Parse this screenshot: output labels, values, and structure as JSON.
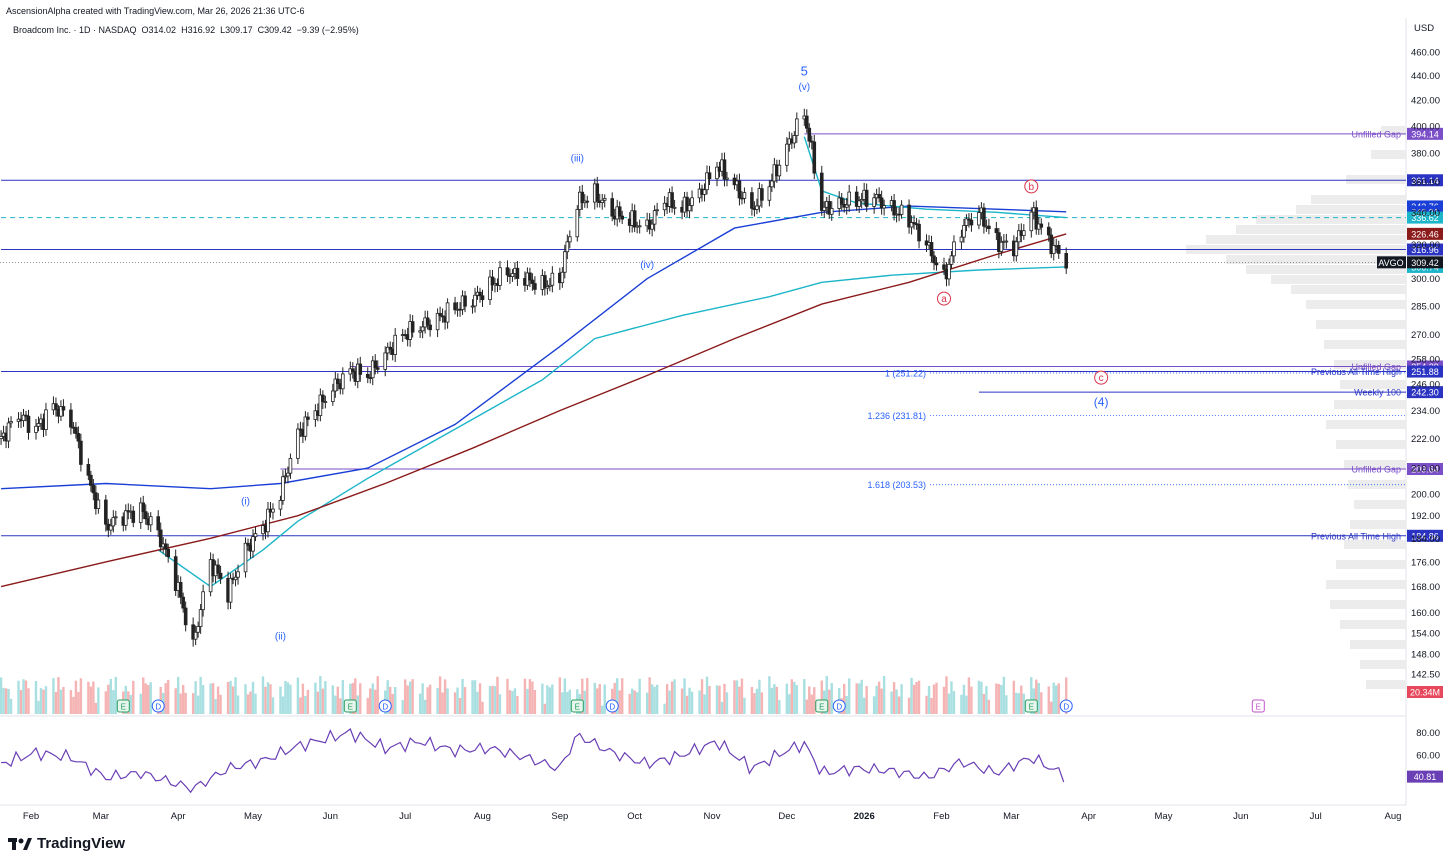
{
  "header": {
    "created_note": "AscensionAlpha created with TradingView.com, Mar 26, 2026 21:36 UTC-6",
    "symbol_line": "Broadcom Inc. · 1D · NASDAQ  O314.02  H316.92  L309.17  C309.42  −9.39 (−2.95%)"
  },
  "brand": {
    "name": "TradingView"
  },
  "colors": {
    "up": "#222222",
    "down": "#222222",
    "ma_blue": "#1a3fd6",
    "ma_teal": "#1cb5c9",
    "ma_red": "#8b1a1a",
    "hline_blue": "#2b34c2",
    "hline_purple": "#7a4fc7",
    "fib": "#2962ff",
    "wave_blue": "#2962ff",
    "wave_red": "#d9344a",
    "rsi": "#6a3fb5",
    "vol_up": "#a8dfe0",
    "vol_down": "#f5b3b3"
  },
  "chart_data": {
    "type": "candlestick",
    "symbol": "AVGO",
    "currency_label": "USD",
    "y_scale": "log",
    "ylim": [
      138,
      470
    ],
    "price_ticks": [
      "460.00",
      "440.00",
      "420.00",
      "400.00",
      "380.00",
      "360.00",
      "340.00",
      "320.00",
      "300.00",
      "285.00",
      "270.00",
      "258.00",
      "246.00",
      "234.00",
      "222.00",
      "210.00",
      "200.00",
      "192.00",
      "184.00",
      "176.00",
      "168.00",
      "160.00",
      "154.00",
      "148.00",
      "142.50"
    ],
    "x_ticks": [
      "Feb",
      "Mar",
      "Apr",
      "May",
      "Jun",
      "Jul",
      "Aug",
      "Sep",
      "Oct",
      "Nov",
      "Dec",
      "2026",
      "Feb",
      "Mar",
      "Apr",
      "May",
      "Jun",
      "Jul",
      "Aug"
    ],
    "close_path": [
      {
        "date": "2025-01-20",
        "close": 222
      },
      {
        "date": "2025-01-27",
        "close": 232
      },
      {
        "date": "2025-02-03",
        "close": 226
      },
      {
        "date": "2025-02-10",
        "close": 236
      },
      {
        "date": "2025-02-17",
        "close": 230
      },
      {
        "date": "2025-02-24",
        "close": 205
      },
      {
        "date": "2025-03-03",
        "close": 188
      },
      {
        "date": "2025-03-10",
        "close": 192
      },
      {
        "date": "2025-03-17",
        "close": 194
      },
      {
        "date": "2025-03-24",
        "close": 186
      },
      {
        "date": "2025-03-31",
        "close": 170
      },
      {
        "date": "2025-04-07",
        "close": 150
      },
      {
        "date": "2025-04-14",
        "close": 176
      },
      {
        "date": "2025-04-21",
        "close": 166
      },
      {
        "date": "2025-04-28",
        "close": 180
      },
      {
        "date": "2025-05-05",
        "close": 188
      },
      {
        "date": "2025-05-12",
        "close": 200
      },
      {
        "date": "2025-05-19",
        "close": 224
      },
      {
        "date": "2025-05-26",
        "close": 234
      },
      {
        "date": "2025-06-02",
        "close": 244
      },
      {
        "date": "2025-06-09",
        "close": 252
      },
      {
        "date": "2025-06-16",
        "close": 250
      },
      {
        "date": "2025-06-23",
        "close": 260
      },
      {
        "date": "2025-06-30",
        "close": 270
      },
      {
        "date": "2025-07-07",
        "close": 274
      },
      {
        "date": "2025-07-14",
        "close": 278
      },
      {
        "date": "2025-07-21",
        "close": 284
      },
      {
        "date": "2025-07-28",
        "close": 288
      },
      {
        "date": "2025-08-04",
        "close": 296
      },
      {
        "date": "2025-08-11",
        "close": 304
      },
      {
        "date": "2025-08-18",
        "close": 300
      },
      {
        "date": "2025-08-25",
        "close": 296
      },
      {
        "date": "2025-09-01",
        "close": 300
      },
      {
        "date": "2025-09-08",
        "close": 346
      },
      {
        "date": "2025-09-15",
        "close": 352
      },
      {
        "date": "2025-09-22",
        "close": 340
      },
      {
        "date": "2025-09-29",
        "close": 335
      },
      {
        "date": "2025-10-06",
        "close": 330
      },
      {
        "date": "2025-10-13",
        "close": 348
      },
      {
        "date": "2025-10-20",
        "close": 342
      },
      {
        "date": "2025-10-27",
        "close": 352
      },
      {
        "date": "2025-11-03",
        "close": 372
      },
      {
        "date": "2025-11-10",
        "close": 358
      },
      {
        "date": "2025-11-17",
        "close": 342
      },
      {
        "date": "2025-11-24",
        "close": 358
      },
      {
        "date": "2025-12-01",
        "close": 384
      },
      {
        "date": "2025-12-08",
        "close": 410
      },
      {
        "date": "2025-12-15",
        "close": 342
      },
      {
        "date": "2025-12-22",
        "close": 345
      },
      {
        "date": "2025-12-29",
        "close": 348
      },
      {
        "date": "2026-01-05",
        "close": 350
      },
      {
        "date": "2026-01-12",
        "close": 342
      },
      {
        "date": "2026-01-19",
        "close": 336
      },
      {
        "date": "2026-01-26",
        "close": 320
      },
      {
        "date": "2026-02-02",
        "close": 300
      },
      {
        "date": "2026-02-09",
        "close": 330
      },
      {
        "date": "2026-02-16",
        "close": 340
      },
      {
        "date": "2026-02-23",
        "close": 322
      },
      {
        "date": "2026-03-02",
        "close": 318
      },
      {
        "date": "2026-03-09",
        "close": 340
      },
      {
        "date": "2026-03-16",
        "close": 322
      },
      {
        "date": "2026-03-23",
        "close": 309.42
      }
    ],
    "moving_averages": [
      {
        "color_key": "ma_blue",
        "points": [
          {
            "date": "2025-01-20",
            "value": 202
          },
          {
            "date": "2025-03-03",
            "value": 204
          },
          {
            "date": "2025-04-14",
            "value": 202
          },
          {
            "date": "2025-05-12",
            "value": 204
          },
          {
            "date": "2025-06-16",
            "value": 210
          },
          {
            "date": "2025-07-21",
            "value": 228
          },
          {
            "date": "2025-09-01",
            "value": 264
          },
          {
            "date": "2025-10-06",
            "value": 300
          },
          {
            "date": "2025-11-10",
            "value": 330
          },
          {
            "date": "2025-12-15",
            "value": 340
          },
          {
            "date": "2026-01-19",
            "value": 344
          },
          {
            "date": "2026-02-23",
            "value": 342
          },
          {
            "date": "2026-03-23",
            "value": 340.31
          }
        ]
      },
      {
        "color_key": "ma_teal",
        "points": [
          {
            "date": "2025-03-24",
            "value": 180
          },
          {
            "date": "2025-04-14",
            "value": 168
          },
          {
            "date": "2025-05-05",
            "value": 180
          },
          {
            "date": "2025-05-19",
            "value": 190
          },
          {
            "date": "2025-06-16",
            "value": 206
          },
          {
            "date": "2025-07-21",
            "value": 226
          },
          {
            "date": "2025-08-25",
            "value": 248
          },
          {
            "date": "2025-09-15",
            "value": 268
          },
          {
            "date": "2025-10-20",
            "value": 280
          },
          {
            "date": "2025-11-24",
            "value": 290
          },
          {
            "date": "2025-12-15",
            "value": 298
          },
          {
            "date": "2026-01-12",
            "value": 302
          },
          {
            "date": "2026-02-16",
            "value": 305
          },
          {
            "date": "2026-03-23",
            "value": 306.74
          }
        ]
      },
      {
        "color_key": "ma_teal",
        "points": [
          {
            "date": "2025-12-08",
            "value": 392
          },
          {
            "date": "2025-12-15",
            "value": 354
          },
          {
            "date": "2025-12-29",
            "value": 346
          },
          {
            "date": "2026-01-26",
            "value": 342
          },
          {
            "date": "2026-02-23",
            "value": 340
          },
          {
            "date": "2026-03-23",
            "value": 336.62
          }
        ]
      },
      {
        "color_key": "ma_red",
        "points": [
          {
            "date": "2025-01-20",
            "value": 168
          },
          {
            "date": "2025-03-03",
            "value": 176
          },
          {
            "date": "2025-04-14",
            "value": 184
          },
          {
            "date": "2025-05-19",
            "value": 192
          },
          {
            "date": "2025-06-23",
            "value": 204
          },
          {
            "date": "2025-07-28",
            "value": 218
          },
          {
            "date": "2025-09-01",
            "value": 234
          },
          {
            "date": "2025-10-06",
            "value": 250
          },
          {
            "date": "2025-11-10",
            "value": 268
          },
          {
            "date": "2025-12-15",
            "value": 286
          },
          {
            "date": "2026-01-19",
            "value": 298
          },
          {
            "date": "2026-02-23",
            "value": 314
          },
          {
            "date": "2026-03-23",
            "value": 326.46
          }
        ]
      }
    ],
    "horizontal_levels": [
      {
        "price": 394.14,
        "label": "Unfilled Gap",
        "tag": "394.14",
        "color_key": "hline_purple",
        "start": "2025-12-08"
      },
      {
        "price": 361.14,
        "label": "",
        "tag": "361.14",
        "color_key": "hline_blue",
        "start": "2025-01-20"
      },
      {
        "price": 336.62,
        "label": "",
        "tag": "",
        "color_key": "ma_teal",
        "start": "2025-01-20",
        "dashed": true
      },
      {
        "price": 316.96,
        "label": "",
        "tag": "316.96",
        "color_key": "hline_blue",
        "start": "2025-01-20"
      },
      {
        "price": 254.29,
        "label": "Unfilled Gap",
        "tag": "254.29",
        "color_key": "hline_purple",
        "start": "2025-06-09"
      },
      {
        "price": 251.88,
        "label": "Previous All Time High",
        "tag": "251.88",
        "color_key": "hline_blue",
        "start": "2025-01-20"
      },
      {
        "price": 242.3,
        "label": "Weekly 100",
        "tag": "242.30",
        "color_key": "hline_blue",
        "start": "2026-02-16"
      },
      {
        "price": 209.64,
        "label": "Unfilled Gap",
        "tag": "209.64",
        "color_key": "hline_purple",
        "start": "2025-05-12"
      },
      {
        "price": 184.86,
        "label": "Previous All Time High",
        "tag": "184.86",
        "color_key": "hline_blue",
        "start": "2025-01-20"
      }
    ],
    "fib_levels": [
      {
        "label": "1 (251.22)",
        "price": 251.22
      },
      {
        "label": "1.236 (231.81)",
        "price": 231.81
      },
      {
        "label": "1.618 (203.53)",
        "price": 203.53
      }
    ],
    "price_tags": [
      {
        "value": "343.76",
        "color_key": "ma_blue"
      },
      {
        "value": "340.31",
        "color_key": "ma_blue"
      },
      {
        "value": "336.62",
        "color_key": "ma_teal"
      },
      {
        "value": "326.46",
        "color_key": "ma_red"
      },
      {
        "value": "306.74",
        "color_key": "ma_teal"
      }
    ],
    "last_price": {
      "symbol": "AVGO",
      "value": "309.42"
    },
    "wave_labels": [
      {
        "text": "5",
        "date": "2025-12-08",
        "price": 440,
        "color_key": "wave_blue",
        "size": 13
      },
      {
        "text": "(v)",
        "date": "2025-12-08",
        "price": 428,
        "color_key": "wave_blue",
        "size": 10
      },
      {
        "text": "(iii)",
        "date": "2025-09-08",
        "price": 374,
        "color_key": "wave_blue",
        "size": 10
      },
      {
        "text": "(iv)",
        "date": "2025-10-06",
        "price": 306,
        "color_key": "wave_blue",
        "size": 10
      },
      {
        "text": "(i)",
        "date": "2025-04-28",
        "price": 196,
        "color_key": "wave_blue",
        "size": 10
      },
      {
        "text": "(ii)",
        "date": "2025-05-12",
        "price": 152,
        "color_key": "wave_blue",
        "size": 10
      },
      {
        "text": "(4)",
        "date": "2026-04-06",
        "price": 236,
        "color_key": "wave_blue",
        "size": 12
      }
    ],
    "wave_circles": [
      {
        "text": "a",
        "date": "2026-02-02",
        "price": 289
      },
      {
        "text": "b",
        "date": "2026-03-09",
        "price": 357
      },
      {
        "text": "c",
        "date": "2026-04-06",
        "price": 249
      }
    ],
    "volume_badge": "20.34M",
    "events": [
      {
        "type": "E",
        "date": "2025-03-10"
      },
      {
        "type": "D",
        "date": "2025-03-24"
      },
      {
        "type": "E",
        "date": "2025-06-09"
      },
      {
        "type": "D",
        "date": "2025-06-23"
      },
      {
        "type": "E",
        "date": "2025-09-08"
      },
      {
        "type": "D",
        "date": "2025-09-22"
      },
      {
        "type": "E",
        "date": "2025-12-15"
      },
      {
        "type": "D",
        "date": "2025-12-22"
      },
      {
        "type": "E",
        "date": "2026-03-09"
      },
      {
        "type": "D",
        "date": "2026-03-23"
      },
      {
        "type": "E",
        "date": "2026-06-08"
      }
    ],
    "rsi": {
      "ticks": [
        "80.00",
        "60.00"
      ],
      "ylim": [
        20,
        85
      ],
      "last_label": "40.81",
      "values": [
        {
          "date": "2025-01-20",
          "v": 52
        },
        {
          "date": "2025-02-03",
          "v": 62
        },
        {
          "date": "2025-02-17",
          "v": 58
        },
        {
          "date": "2025-03-03",
          "v": 40
        },
        {
          "date": "2025-03-17",
          "v": 44
        },
        {
          "date": "2025-04-07",
          "v": 30
        },
        {
          "date": "2025-04-21",
          "v": 48
        },
        {
          "date": "2025-05-05",
          "v": 55
        },
        {
          "date": "2025-05-19",
          "v": 68
        },
        {
          "date": "2025-06-09",
          "v": 80
        },
        {
          "date": "2025-06-23",
          "v": 66
        },
        {
          "date": "2025-07-07",
          "v": 72
        },
        {
          "date": "2025-07-21",
          "v": 64
        },
        {
          "date": "2025-08-04",
          "v": 66
        },
        {
          "date": "2025-08-18",
          "v": 58
        },
        {
          "date": "2025-09-01",
          "v": 48
        },
        {
          "date": "2025-09-08",
          "v": 78
        },
        {
          "date": "2025-09-22",
          "v": 62
        },
        {
          "date": "2025-10-06",
          "v": 52
        },
        {
          "date": "2025-10-20",
          "v": 60
        },
        {
          "date": "2025-11-03",
          "v": 72
        },
        {
          "date": "2025-11-17",
          "v": 48
        },
        {
          "date": "2025-12-01",
          "v": 64
        },
        {
          "date": "2025-12-08",
          "v": 70
        },
        {
          "date": "2025-12-15",
          "v": 44
        },
        {
          "date": "2025-12-29",
          "v": 48
        },
        {
          "date": "2026-01-12",
          "v": 46
        },
        {
          "date": "2026-01-26",
          "v": 40
        },
        {
          "date": "2026-02-09",
          "v": 54
        },
        {
          "date": "2026-02-23",
          "v": 44
        },
        {
          "date": "2026-03-09",
          "v": 58
        },
        {
          "date": "2026-03-23",
          "v": 40.81
        }
      ]
    }
  }
}
